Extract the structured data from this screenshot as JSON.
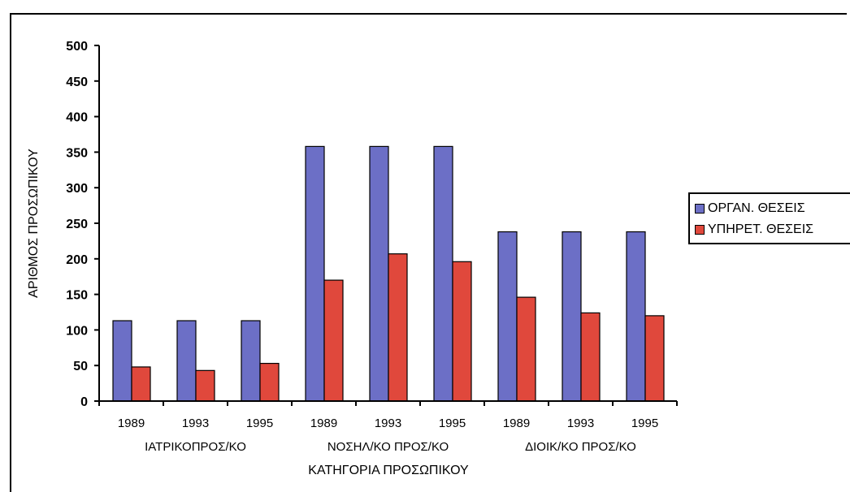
{
  "chart_data": {
    "type": "bar",
    "categories": [
      "1989",
      "1993",
      "1995",
      "1989",
      "1993",
      "1995",
      "1989",
      "1993",
      "1995"
    ],
    "groups": [
      {
        "label": "ΙΑΤΡΙΚΟΠΡΟΣ/ΚΟ",
        "start": 0,
        "end": 2
      },
      {
        "label": "ΝΟΣΗΛ/ΚΟ ΠΡΟΣ/ΚΟ",
        "start": 3,
        "end": 5
      },
      {
        "label": "ΔΙΟΙΚ/ΚΟ ΠΡΟΣ/ΚΟ",
        "start": 6,
        "end": 8
      }
    ],
    "series": [
      {
        "name": "ΟΡΓΑΝ. ΘΕΣΕΙΣ",
        "color": "#6c6fc6",
        "values": [
          113,
          113,
          113,
          358,
          358,
          358,
          238,
          238,
          238
        ]
      },
      {
        "name": "ΥΠΗΡΕΤ. ΘΕΣΕΙΣ",
        "color": "#e0483c",
        "values": [
          48,
          43,
          53,
          170,
          207,
          196,
          146,
          124,
          120
        ]
      }
    ],
    "xlabel": "ΚΑΤΗΓΟΡΙΑ ΠΡΟΣΩΠΙΚΟΥ",
    "ylabel": "ΑΡΙΘΜΟΣ ΠΡΟΣΩΠΙΚΟΥ",
    "ylim": [
      0,
      500
    ],
    "yticks": [
      0,
      50,
      100,
      150,
      200,
      250,
      300,
      350,
      400,
      450,
      500
    ],
    "grid": false,
    "legend": "right"
  }
}
